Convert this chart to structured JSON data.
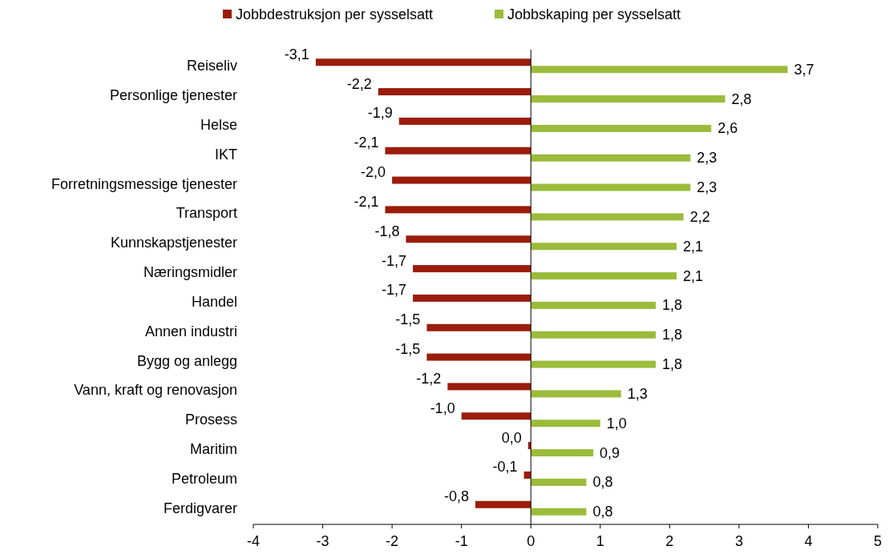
{
  "chart_data": {
    "type": "bar",
    "orientation": "horizontal",
    "categories": [
      "Reiseliv",
      "Personlige tjenester",
      "Helse",
      "IKT",
      "Forretningsmessige tjenester",
      "Transport",
      "Kunnskapstjenester",
      "Næringsmidler",
      "Handel",
      "Annen industri",
      "Bygg og anlegg",
      "Vann, kraft og renovasjon",
      "Prosess",
      "Maritim",
      "Petroleum",
      "Ferdigvarer"
    ],
    "series": [
      {
        "name": "Jobbdestruksjon per sysselsatt",
        "color": "#9b1c0b",
        "values": [
          -3.1,
          -2.2,
          -1.9,
          -2.1,
          -2.0,
          -2.1,
          -1.8,
          -1.7,
          -1.7,
          -1.5,
          -1.5,
          -1.2,
          -1.0,
          -0.04,
          -0.1,
          -0.8
        ],
        "value_labels": [
          "-3,1",
          "-2,2",
          "-1,9",
          "-2,1",
          "-2,0",
          "-2,1",
          "-1,8",
          "-1,7",
          "-1,7",
          "-1,5",
          "-1,5",
          "-1,2",
          "-1,0",
          "0,0",
          "-0,1",
          "-0,8"
        ]
      },
      {
        "name": "Jobbskaping per sysselsatt",
        "color": "#9bbb3b",
        "values": [
          3.7,
          2.8,
          2.6,
          2.3,
          2.3,
          2.2,
          2.1,
          2.1,
          1.8,
          1.8,
          1.8,
          1.3,
          1.0,
          0.9,
          0.8,
          0.8
        ],
        "value_labels": [
          "3,7",
          "2,8",
          "2,6",
          "2,3",
          "2,3",
          "2,2",
          "2,1",
          "2,1",
          "1,8",
          "1,8",
          "1,8",
          "1,3",
          "1,0",
          "0,9",
          "0,8",
          "0,8"
        ]
      }
    ],
    "xlim": [
      -4,
      5
    ],
    "xticks": [
      -4,
      -3,
      -2,
      -1,
      0,
      1,
      2,
      3,
      4,
      5
    ],
    "legend": "top"
  }
}
